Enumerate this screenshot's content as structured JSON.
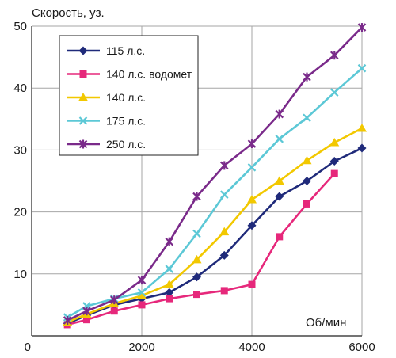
{
  "chart_data": {
    "type": "line",
    "ylabel": "Скорость, уз.",
    "xlabel": "Об/мин",
    "xlim": [
      0,
      6000
    ],
    "ylim": [
      0,
      50
    ],
    "x_ticks": [
      0,
      2000,
      4000,
      6000
    ],
    "y_ticks": [
      10,
      20,
      30,
      40,
      50
    ],
    "grid": true,
    "legend_position": "top-left",
    "series": [
      {
        "name": "115 л.с.",
        "color": "#1f2a7a",
        "marker": "diamond",
        "points": [
          [
            650,
            2.0
          ],
          [
            1000,
            3.3
          ],
          [
            1500,
            5.0
          ],
          [
            2000,
            6.0
          ],
          [
            2500,
            7.0
          ],
          [
            3000,
            9.5
          ],
          [
            3500,
            13.0
          ],
          [
            4000,
            17.8
          ],
          [
            4500,
            22.5
          ],
          [
            5000,
            25.0
          ],
          [
            5500,
            28.2
          ],
          [
            6000,
            30.3
          ]
        ]
      },
      {
        "name": "140 л.с. водомет",
        "color": "#e6287b",
        "marker": "square",
        "points": [
          [
            650,
            1.8
          ],
          [
            1000,
            2.6
          ],
          [
            1500,
            4.0
          ],
          [
            2000,
            5.0
          ],
          [
            2500,
            6.0
          ],
          [
            3000,
            6.7
          ],
          [
            3500,
            7.3
          ],
          [
            4000,
            8.3
          ],
          [
            4500,
            16.0
          ],
          [
            5000,
            21.3
          ],
          [
            5500,
            26.2
          ]
        ]
      },
      {
        "name": "140 л.с.",
        "color": "#f2c800",
        "marker": "triangle",
        "points": [
          [
            650,
            2.2
          ],
          [
            1000,
            3.5
          ],
          [
            1500,
            5.2
          ],
          [
            2000,
            6.5
          ],
          [
            2500,
            8.3
          ],
          [
            3000,
            12.3
          ],
          [
            3500,
            16.8
          ],
          [
            4000,
            22.0
          ],
          [
            4500,
            25.0
          ],
          [
            5000,
            28.3
          ],
          [
            5500,
            31.2
          ],
          [
            6000,
            33.5
          ]
        ]
      },
      {
        "name": "175 л.с.",
        "color": "#5cc8d6",
        "marker": "x",
        "points": [
          [
            650,
            3.0
          ],
          [
            1000,
            4.8
          ],
          [
            1500,
            6.0
          ],
          [
            2000,
            7.0
          ],
          [
            2500,
            10.8
          ],
          [
            3000,
            16.5
          ],
          [
            3500,
            22.8
          ],
          [
            4000,
            27.2
          ],
          [
            4500,
            31.8
          ],
          [
            5000,
            35.2
          ],
          [
            5500,
            39.3
          ],
          [
            6000,
            43.2
          ]
        ]
      },
      {
        "name": "250 л.с.",
        "color": "#7a2a8a",
        "marker": "star",
        "points": [
          [
            650,
            2.5
          ],
          [
            1000,
            4.0
          ],
          [
            1500,
            5.8
          ],
          [
            2000,
            9.0
          ],
          [
            2500,
            15.2
          ],
          [
            3000,
            22.5
          ],
          [
            3500,
            27.5
          ],
          [
            4000,
            31.0
          ],
          [
            4500,
            35.8
          ],
          [
            5000,
            41.8
          ],
          [
            5500,
            45.3
          ],
          [
            6000,
            49.8
          ]
        ]
      }
    ]
  }
}
